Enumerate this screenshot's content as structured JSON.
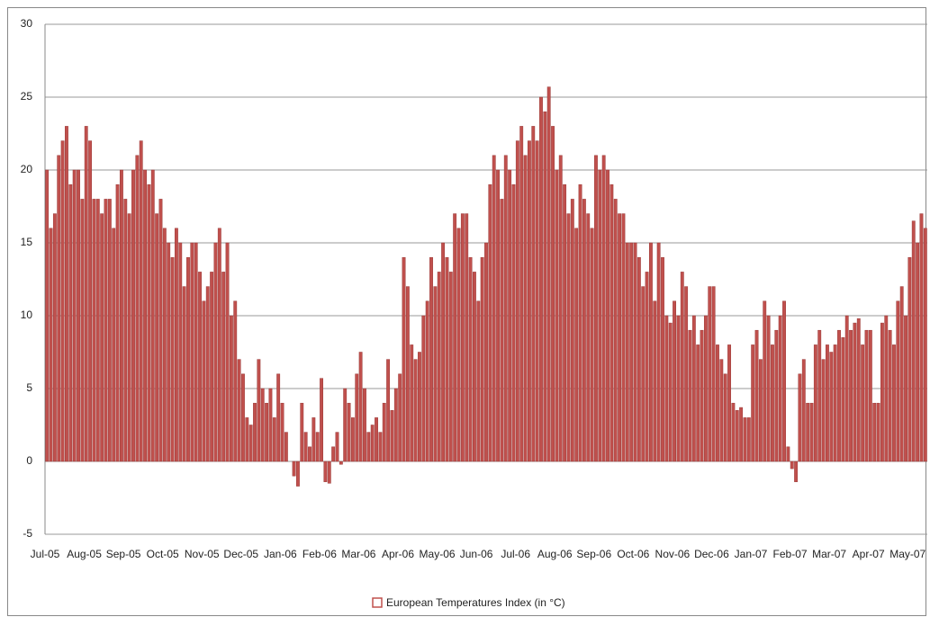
{
  "chart_data": {
    "type": "bar",
    "legend": "European Temperatures Index (in °C)",
    "color": "#c0504d",
    "categories": [
      "Jul-05",
      null,
      null,
      null,
      null,
      null,
      null,
      null,
      null,
      null,
      "Aug-05",
      null,
      null,
      null,
      null,
      null,
      null,
      null,
      null,
      null,
      "Sep-05",
      null,
      null,
      null,
      null,
      null,
      null,
      null,
      null,
      null,
      "Oct-05",
      null,
      null,
      null,
      null,
      null,
      null,
      null,
      null,
      null,
      "Nov-05",
      null,
      null,
      null,
      null,
      null,
      null,
      null,
      null,
      null,
      "Dec-05",
      null,
      null,
      null,
      null,
      null,
      null,
      null,
      null,
      null,
      "Jan-06",
      null,
      null,
      null,
      null,
      null,
      null,
      null,
      null,
      null,
      "Feb-06",
      null,
      null,
      null,
      null,
      null,
      null,
      null,
      null,
      null,
      "Mar-06",
      null,
      null,
      null,
      null,
      null,
      null,
      null,
      null,
      null,
      "Apr-06",
      null,
      null,
      null,
      null,
      null,
      null,
      null,
      null,
      null,
      "May-06",
      null,
      null,
      null,
      null,
      null,
      null,
      null,
      null,
      null,
      "Jun-06",
      null,
      null,
      null,
      null,
      null,
      null,
      null,
      null,
      null,
      "Jul-06",
      null,
      null,
      null,
      null,
      null,
      null,
      null,
      null,
      null,
      "Aug-06",
      null,
      null,
      null,
      null,
      null,
      null,
      null,
      null,
      null,
      "Sep-06",
      null,
      null,
      null,
      null,
      null,
      null,
      null,
      null,
      null,
      "Oct-06",
      null,
      null,
      null,
      null,
      null,
      null,
      null,
      null,
      null,
      "Nov-06",
      null,
      null,
      null,
      null,
      null,
      null,
      null,
      null,
      null,
      "Dec-06",
      null,
      null,
      null,
      null,
      null,
      null,
      null,
      null,
      null,
      "Jan-07",
      null,
      null,
      null,
      null,
      null,
      null,
      null,
      null,
      null,
      "Feb-07",
      null,
      null,
      null,
      null,
      null,
      null,
      null,
      null,
      null,
      "Mar-07",
      null,
      null,
      null,
      null,
      null,
      null,
      null,
      null,
      null,
      "Apr-07",
      null,
      null,
      null,
      null,
      null,
      null,
      null,
      null,
      null,
      "May-07",
      null,
      null,
      null,
      null
    ],
    "values": [
      20,
      16,
      17,
      21,
      22,
      23,
      19,
      20,
      20,
      18,
      23,
      22,
      18,
      18,
      17,
      18,
      18,
      16,
      19,
      20,
      18,
      17,
      20,
      21,
      22,
      20,
      19,
      20,
      17,
      18,
      16,
      15,
      14,
      16,
      15,
      12,
      14,
      15,
      15,
      13,
      11,
      12,
      13,
      15,
      16,
      13,
      15,
      10,
      11,
      7,
      6,
      3,
      2.5,
      4,
      7,
      5,
      4,
      5,
      3,
      6,
      4,
      2,
      0,
      -1,
      -1.7,
      4,
      2,
      1,
      3,
      2,
      5.7,
      -1.4,
      -1.5,
      1,
      2,
      -0.2,
      5,
      4,
      3,
      6,
      7.5,
      5,
      2,
      2.5,
      3,
      2,
      4,
      7,
      3.5,
      5,
      6,
      14,
      12,
      8,
      7,
      7.5,
      10,
      11,
      14,
      12,
      13,
      15,
      14,
      13,
      17,
      16,
      17,
      17,
      14,
      13,
      11,
      14,
      15,
      19,
      21,
      20,
      18,
      21,
      20,
      19,
      22,
      23,
      21,
      22,
      23,
      22,
      25,
      24,
      25.7,
      23,
      20,
      21,
      19,
      17,
      18,
      16,
      19,
      18,
      17,
      16,
      21,
      20,
      21,
      20,
      19,
      18,
      17,
      17,
      15,
      15,
      15,
      14,
      12,
      13,
      15,
      11,
      15,
      14,
      10,
      9.5,
      11,
      10,
      13,
      12,
      9,
      10,
      8,
      9,
      10,
      12,
      12,
      8,
      7,
      6,
      8,
      4,
      3.5,
      3.7,
      3,
      3,
      8,
      9,
      7,
      11,
      10,
      8,
      9,
      10,
      11,
      1,
      -0.5,
      -1.4,
      6,
      7,
      4,
      4,
      8,
      9,
      7,
      8,
      7.5,
      8,
      9,
      8.5,
      10,
      9,
      9.5,
      9.8,
      8,
      9,
      9,
      4,
      4,
      9.5,
      10,
      9,
      8,
      11,
      12,
      10,
      14,
      16.5,
      15,
      17,
      16
    ],
    "ylim": [
      -5,
      30
    ],
    "yticks": [
      -5,
      0,
      5,
      10,
      15,
      20,
      25,
      30
    ],
    "grid": true
  }
}
